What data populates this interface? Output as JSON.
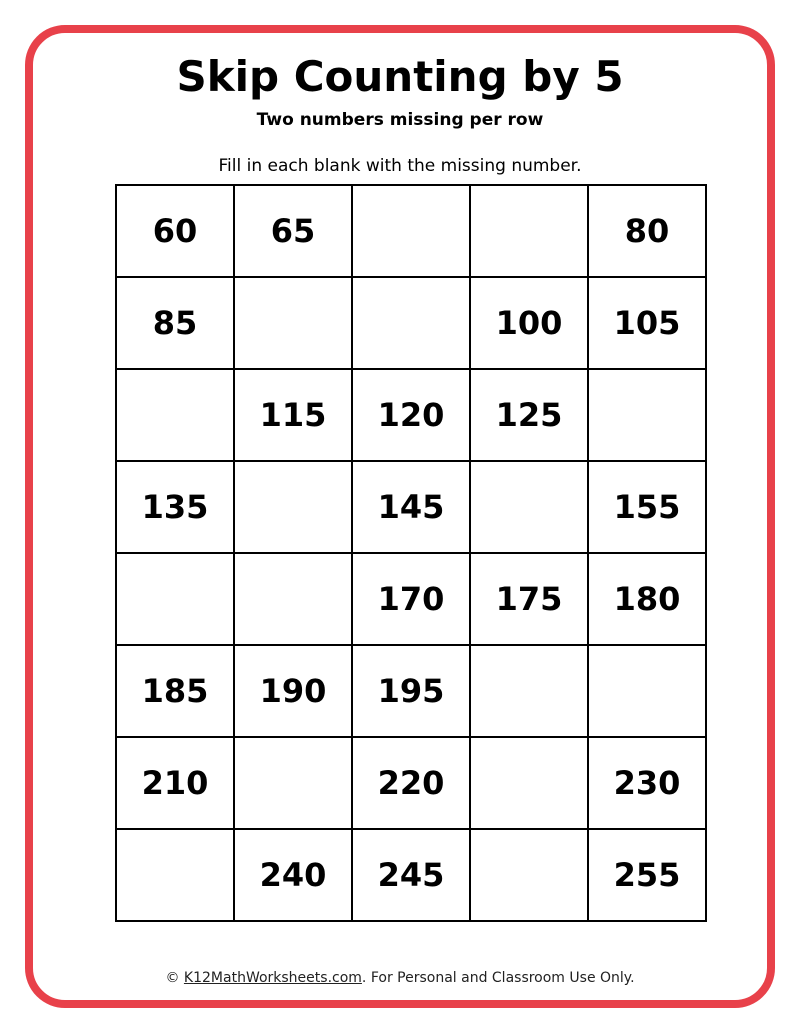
{
  "header": {
    "title": "Skip Counting by 5",
    "subtitle": "Two numbers missing per row",
    "instructions": "Fill in each blank with the missing number."
  },
  "grid": [
    [
      "60",
      "65",
      "",
      "",
      "80"
    ],
    [
      "85",
      "",
      "",
      "100",
      "105"
    ],
    [
      "",
      "115",
      "120",
      "125",
      ""
    ],
    [
      "135",
      "",
      "145",
      "",
      "155"
    ],
    [
      "",
      "",
      "170",
      "175",
      "180"
    ],
    [
      "185",
      "190",
      "195",
      "",
      ""
    ],
    [
      "210",
      "",
      "220",
      "",
      "230"
    ],
    [
      "",
      "240",
      "245",
      "",
      "255"
    ]
  ],
  "footer": {
    "copyright": "©",
    "link": "K12MathWorksheets.com",
    "text": ". For Personal and Classroom Use Only."
  },
  "colors": {
    "border": "#e8414a"
  }
}
